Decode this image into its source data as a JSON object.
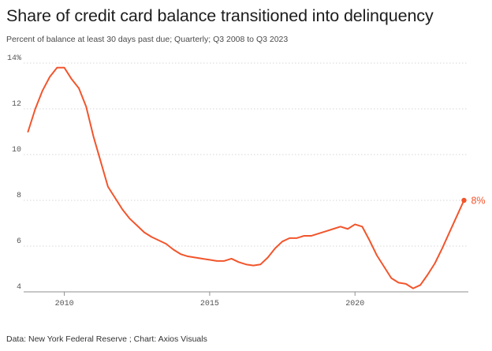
{
  "header": {
    "title": "Share of credit card balance transitioned into delinquency",
    "subtitle": "Percent of balance at least 30 days past due; Quarterly; Q3 2008 to Q3 2023"
  },
  "footer": {
    "source": "Data: New York Federal Reserve ; Chart: Axios Visuals"
  },
  "colors": {
    "line": "#f2552c",
    "grid": "#d7d7d7",
    "text": "#1d1d1d"
  },
  "chart_data": {
    "type": "line",
    "title": "Share of credit card balance transitioned into delinquency",
    "subtitle": "Percent of balance at least 30 days past due; Quarterly; Q3 2008 to Q3 2023",
    "xlabel": "",
    "ylabel": "",
    "xlim": [
      2008.6,
      2023.9
    ],
    "ylim": [
      4,
      14
    ],
    "y_ticks": [
      4,
      6,
      8,
      10,
      12,
      14
    ],
    "y_tick_labels": [
      "4",
      "6",
      "8",
      "10",
      "12",
      "14%"
    ],
    "x_ticks": [
      2010,
      2015,
      2020
    ],
    "x_tick_labels": [
      "2010",
      "2015",
      "2020"
    ],
    "grid": "horizontal dotted",
    "legend": "none",
    "end_label": "8%",
    "series": [
      {
        "x": [
          2008.75,
          2009.0,
          2009.25,
          2009.5,
          2009.75,
          2010.0,
          2010.25,
          2010.5,
          2010.75,
          2011.0,
          2011.25,
          2011.5,
          2011.75,
          2012.0,
          2012.25,
          2012.5,
          2012.75,
          2013.0,
          2013.25,
          2013.5,
          2013.75,
          2014.0,
          2014.25,
          2014.5,
          2014.75,
          2015.0,
          2015.25,
          2015.5,
          2015.75,
          2016.0,
          2016.25,
          2016.5,
          2016.75,
          2017.0,
          2017.25,
          2017.5,
          2017.75,
          2018.0,
          2018.25,
          2018.5,
          2018.75,
          2019.0,
          2019.25,
          2019.5,
          2019.75,
          2020.0,
          2020.25,
          2020.5,
          2020.75,
          2021.0,
          2021.25,
          2021.5,
          2021.75,
          2022.0,
          2022.25,
          2022.5,
          2022.75,
          2023.0,
          2023.25,
          2023.5,
          2023.75
        ],
        "y": [
          11.0,
          12.0,
          12.8,
          13.4,
          13.8,
          13.8,
          13.3,
          12.9,
          12.1,
          10.8,
          9.7,
          8.6,
          8.1,
          7.6,
          7.2,
          6.9,
          6.6,
          6.4,
          6.25,
          6.1,
          5.85,
          5.65,
          5.55,
          5.5,
          5.45,
          5.4,
          5.35,
          5.35,
          5.45,
          5.3,
          5.2,
          5.15,
          5.2,
          5.5,
          5.9,
          6.2,
          6.35,
          6.35,
          6.45,
          6.45,
          6.55,
          6.65,
          6.75,
          6.85,
          6.75,
          6.95,
          6.85,
          6.25,
          5.6,
          5.1,
          4.6,
          4.4,
          4.35,
          4.15,
          4.3,
          4.75,
          5.25,
          5.9,
          6.6,
          7.3,
          8.0
        ]
      }
    ]
  }
}
